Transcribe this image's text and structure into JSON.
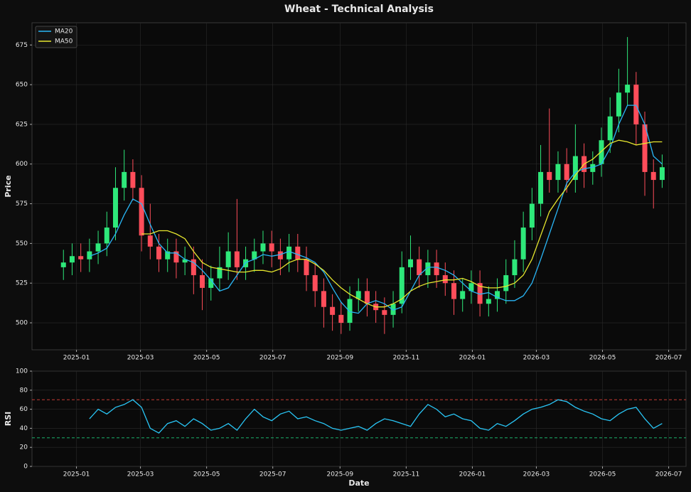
{
  "chart_data": [
    {
      "type": "candlestick",
      "title": "Wheat - Technical Analysis",
      "ylabel": "Price",
      "x": [
        -12,
        -4,
        4,
        12,
        20,
        28,
        36,
        44,
        52,
        60,
        68,
        76,
        84,
        92,
        100,
        108,
        116,
        124,
        132,
        140,
        148,
        156,
        164,
        172,
        180,
        188,
        196,
        204,
        212,
        220,
        228,
        236,
        244,
        252,
        260,
        268,
        276,
        284,
        292,
        300,
        308,
        316,
        324,
        332,
        340,
        348,
        356,
        364,
        372,
        380,
        388,
        396,
        404,
        412,
        420,
        428,
        436,
        444,
        452,
        460,
        468,
        476,
        484,
        492,
        500,
        508,
        516,
        524,
        532,
        540
      ],
      "open": [
        535,
        538,
        542,
        540,
        545,
        550,
        560,
        585,
        595,
        585,
        555,
        548,
        540,
        545,
        538,
        540,
        530,
        522,
        528,
        535,
        545,
        535,
        540,
        545,
        550,
        545,
        540,
        548,
        540,
        530,
        520,
        510,
        505,
        500,
        515,
        520,
        512,
        508,
        505,
        512,
        535,
        540,
        530,
        538,
        530,
        525,
        515,
        520,
        525,
        512,
        515,
        520,
        530,
        540,
        560,
        575,
        595,
        590,
        600,
        590,
        605,
        595,
        600,
        615,
        630,
        645,
        650,
        625,
        595,
        590
      ],
      "high": [
        546,
        550,
        550,
        553,
        558,
        570,
        598,
        609,
        603,
        593,
        575,
        556,
        553,
        553,
        548,
        548,
        540,
        536,
        548,
        557,
        578,
        548,
        553,
        558,
        558,
        553,
        556,
        556,
        548,
        538,
        528,
        518,
        513,
        523,
        528,
        528,
        520,
        516,
        520,
        545,
        555,
        548,
        546,
        546,
        538,
        533,
        528,
        533,
        533,
        523,
        528,
        540,
        552,
        570,
        585,
        612,
        635,
        608,
        610,
        625,
        613,
        608,
        623,
        642,
        660,
        680,
        658,
        633,
        603,
        606
      ],
      "low": [
        527,
        530,
        532,
        532,
        537,
        542,
        552,
        577,
        577,
        545,
        540,
        532,
        532,
        528,
        530,
        518,
        508,
        514,
        520,
        527,
        527,
        527,
        532,
        537,
        535,
        530,
        532,
        532,
        520,
        510,
        497,
        495,
        493,
        495,
        507,
        504,
        500,
        493,
        497,
        506,
        527,
        522,
        522,
        522,
        517,
        505,
        507,
        512,
        504,
        504,
        507,
        512,
        522,
        532,
        552,
        567,
        582,
        582,
        582,
        582,
        585,
        587,
        592,
        607,
        620,
        637,
        612,
        580,
        572,
        585
      ],
      "close": [
        538,
        542,
        540,
        545,
        550,
        560,
        585,
        595,
        585,
        555,
        548,
        540,
        545,
        538,
        540,
        530,
        522,
        528,
        535,
        545,
        535,
        540,
        545,
        550,
        545,
        540,
        548,
        540,
        530,
        520,
        510,
        505,
        500,
        515,
        520,
        512,
        508,
        505,
        512,
        535,
        540,
        530,
        538,
        530,
        525,
        515,
        520,
        525,
        512,
        515,
        520,
        530,
        540,
        560,
        575,
        595,
        590,
        600,
        590,
        605,
        595,
        600,
        615,
        630,
        645,
        650,
        625,
        595,
        590,
        598
      ],
      "up_color": "#2ee87a",
      "down_color": "#ff4d5a",
      "series": [
        {
          "name": "MA20",
          "color": "#29b6f6",
          "values": [
            null,
            null,
            null,
            542,
            544,
            547,
            556,
            568,
            578,
            575,
            562,
            550,
            544,
            544,
            540,
            538,
            533,
            527,
            520,
            522,
            530,
            538,
            540,
            543,
            542,
            543,
            545,
            543,
            541,
            538,
            532,
            522,
            513,
            507,
            506,
            512,
            514,
            512,
            508,
            510,
            520,
            530,
            535,
            535,
            533,
            530,
            525,
            520,
            518,
            519,
            516,
            514,
            514,
            517,
            525,
            540,
            556,
            572,
            588,
            595,
            597,
            598,
            600,
            610,
            625,
            637,
            637,
            625,
            605,
            600
          ]
        },
        {
          "name": "MA50",
          "color": "#e6e62e",
          "values": [
            null,
            null,
            null,
            null,
            null,
            null,
            null,
            null,
            null,
            556,
            556,
            558,
            558,
            556,
            553,
            545,
            538,
            535,
            534,
            533,
            532,
            532,
            533,
            533,
            532,
            534,
            538,
            540,
            540,
            537,
            533,
            527,
            522,
            518,
            515,
            512,
            510,
            510,
            512,
            515,
            520,
            523,
            525,
            526,
            527,
            527,
            528,
            526,
            523,
            522,
            522,
            523,
            525,
            530,
            540,
            555,
            570,
            578,
            585,
            593,
            600,
            603,
            608,
            613,
            615,
            614,
            612,
            613,
            614,
            614
          ]
        }
      ],
      "legend": "upper left",
      "grid": true,
      "xlim": [
        -41,
        562
      ],
      "xticks": [
        {
          "value": 0,
          "label": "2025-01"
        },
        {
          "value": 59,
          "label": "2025-03"
        },
        {
          "value": 120,
          "label": "2025-05"
        },
        {
          "value": 181,
          "label": "2025-07"
        },
        {
          "value": 243,
          "label": "2025-09"
        },
        {
          "value": 304,
          "label": "2025-11"
        },
        {
          "value": 365,
          "label": "2026-01"
        },
        {
          "value": 424,
          "label": "2026-03"
        },
        {
          "value": 485,
          "label": "2026-05"
        },
        {
          "value": 546,
          "label": "2026-07"
        }
      ],
      "ylim": [
        483,
        689
      ],
      "yticks": [
        500,
        525,
        550,
        575,
        600,
        625,
        650,
        675
      ]
    },
    {
      "type": "line",
      "ylabel": "RSI",
      "xlabel": "Date",
      "x": [
        -12,
        -4,
        4,
        12,
        20,
        28,
        36,
        44,
        52,
        60,
        68,
        76,
        84,
        92,
        100,
        108,
        116,
        124,
        132,
        140,
        148,
        156,
        164,
        172,
        180,
        188,
        196,
        204,
        212,
        220,
        228,
        236,
        244,
        252,
        260,
        268,
        276,
        284,
        292,
        300,
        308,
        316,
        324,
        332,
        340,
        348,
        356,
        364,
        372,
        380,
        388,
        396,
        404,
        412,
        420,
        428,
        436,
        444,
        452,
        460,
        468,
        476,
        484,
        492,
        500,
        508,
        516,
        524,
        532,
        540
      ],
      "series": [
        {
          "color": "#29c6f6",
          "values": [
            null,
            null,
            null,
            50,
            60,
            55,
            62,
            65,
            70,
            62,
            40,
            35,
            45,
            48,
            42,
            50,
            45,
            38,
            40,
            45,
            38,
            50,
            60,
            52,
            48,
            55,
            58,
            50,
            52,
            48,
            45,
            40,
            38,
            40,
            42,
            38,
            45,
            50,
            48,
            45,
            42,
            55,
            65,
            60,
            52,
            55,
            50,
            48,
            40,
            38,
            45,
            42,
            48,
            55,
            60,
            62,
            65,
            70,
            68,
            62,
            58,
            55,
            50,
            48,
            55,
            60,
            62,
            50,
            40,
            45
          ]
        }
      ],
      "hlines": [
        {
          "value": 70,
          "color": "#e0443a"
        },
        {
          "value": 30,
          "color": "#1fc97a"
        }
      ],
      "grid": true,
      "xlim": [
        -41,
        562
      ],
      "xticks": [
        {
          "value": 0,
          "label": "2025-01"
        },
        {
          "value": 59,
          "label": "2025-03"
        },
        {
          "value": 120,
          "label": "2025-05"
        },
        {
          "value": 181,
          "label": "2025-07"
        },
        {
          "value": 243,
          "label": "2025-09"
        },
        {
          "value": 304,
          "label": "2025-11"
        },
        {
          "value": 365,
          "label": "2026-01"
        },
        {
          "value": 424,
          "label": "2026-03"
        },
        {
          "value": 485,
          "label": "2026-05"
        },
        {
          "value": 546,
          "label": "2026-07"
        }
      ],
      "ylim": [
        0,
        100
      ],
      "yticks": [
        0,
        20,
        40,
        60,
        80,
        100
      ]
    }
  ]
}
